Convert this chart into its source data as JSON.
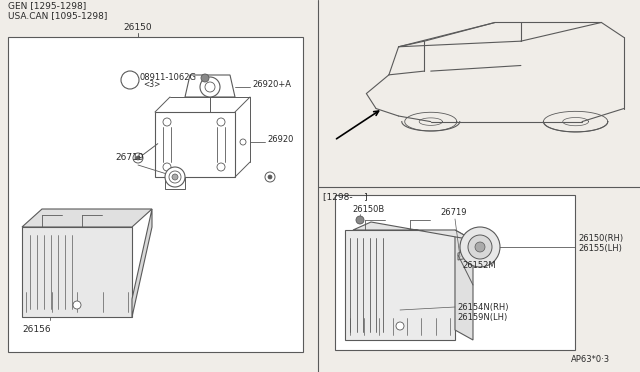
{
  "bg_color": "#f0ede8",
  "line_color": "#5a5a5a",
  "text_color": "#2a2a2a",
  "white": "#ffffff",
  "header_line1": "GEN [1295-1298]",
  "header_line2": "USA.CAN [1095-1298]",
  "diagram_ref": "AP63*0·3"
}
